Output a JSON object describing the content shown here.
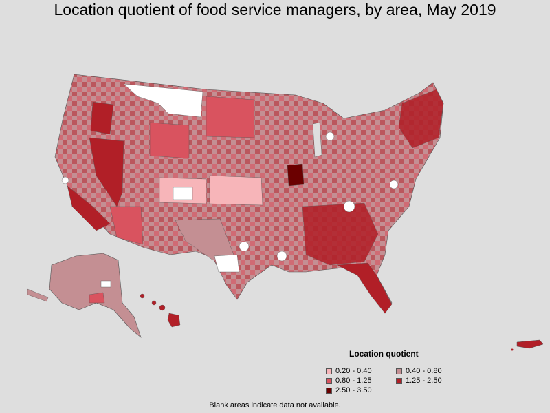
{
  "title": "Location quotient of food service managers, by area, May 2019",
  "legend": {
    "title": "Location quotient",
    "items": [
      {
        "label": "0.20 - 0.40",
        "color": "#f7b5b9"
      },
      {
        "label": "0.40 - 0.80",
        "color": "#c48f93"
      },
      {
        "label": "0.80 - 1.25",
        "color": "#d9535f"
      },
      {
        "label": "1.25 - 2.50",
        "color": "#b11f27"
      },
      {
        "label": "2.50 - 3.50",
        "color": "#6b0000"
      }
    ]
  },
  "footnote": "Blank areas indicate data not available.",
  "colors": {
    "background": "#dedede",
    "no_data": "#ffffff",
    "border": "#555555"
  }
}
